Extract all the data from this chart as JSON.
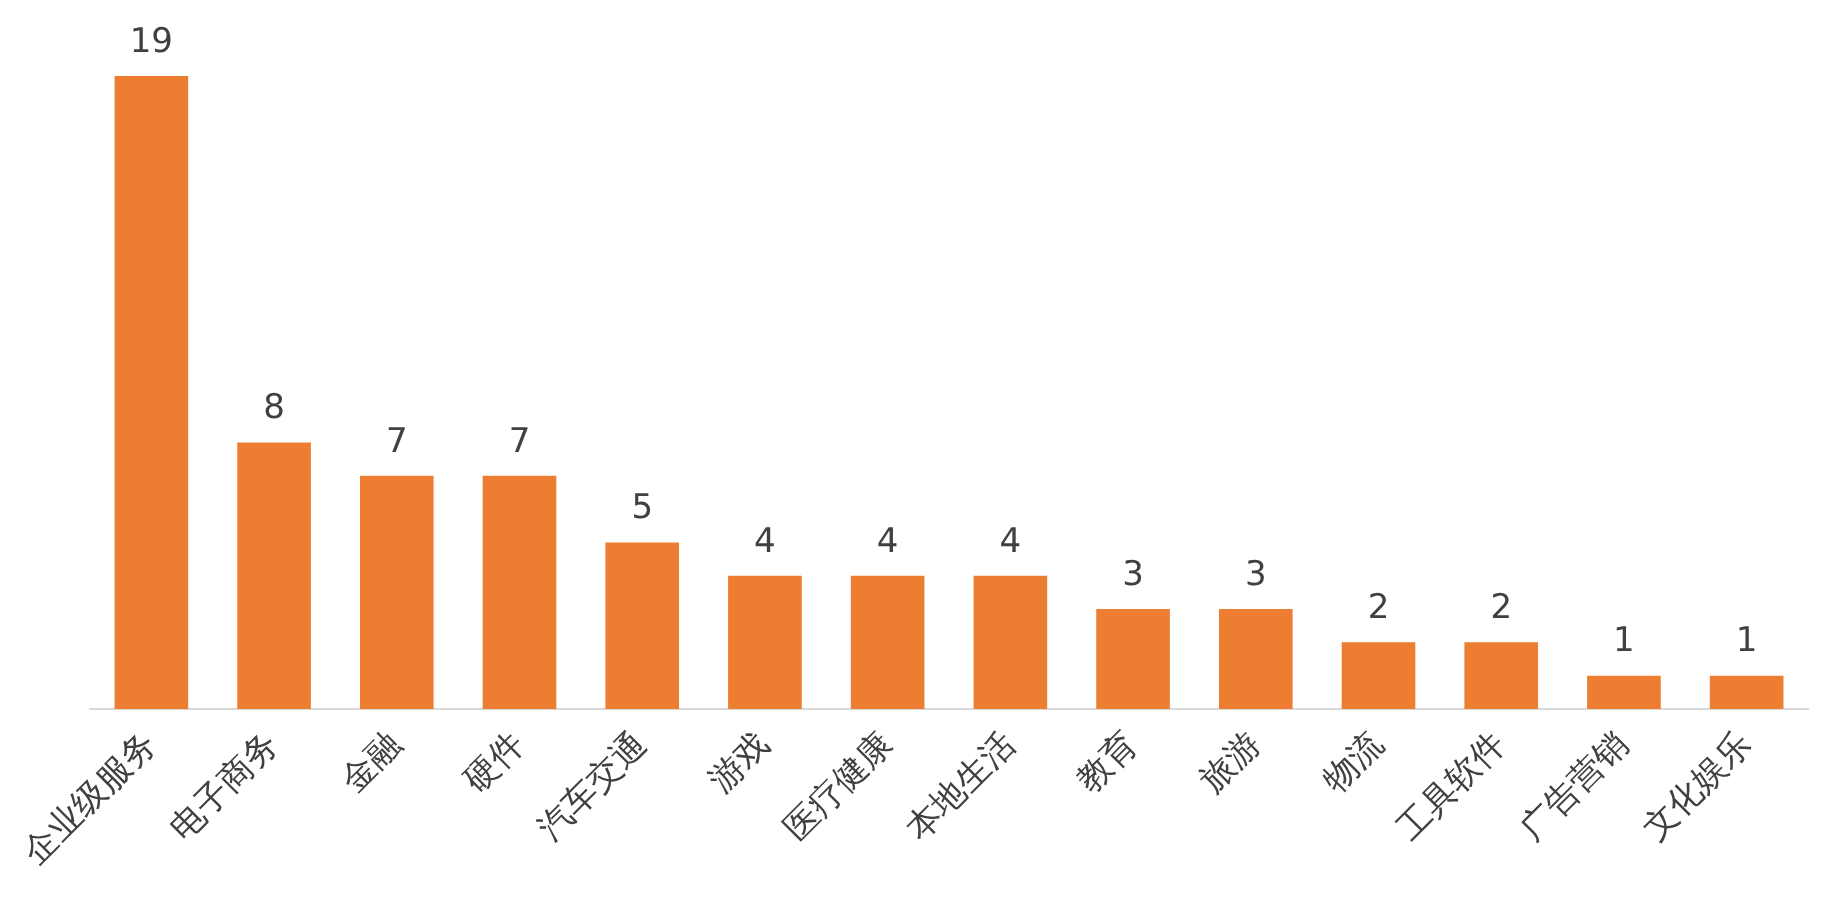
{
  "chart_data": {
    "type": "bar",
    "categories": [
      "企业级服务",
      "电子商务",
      "金融",
      "硬件",
      "汽车交通",
      "游戏",
      "医疗健康",
      "本地生活",
      "教育",
      "旅游",
      "物流",
      "工具软件",
      "广告营销",
      "文化娱乐"
    ],
    "values": [
      19,
      8,
      7,
      7,
      5,
      4,
      4,
      4,
      3,
      3,
      2,
      2,
      1,
      1
    ],
    "color": "#ed7d31",
    "data_labels": true,
    "grid": false,
    "legend": false
  }
}
